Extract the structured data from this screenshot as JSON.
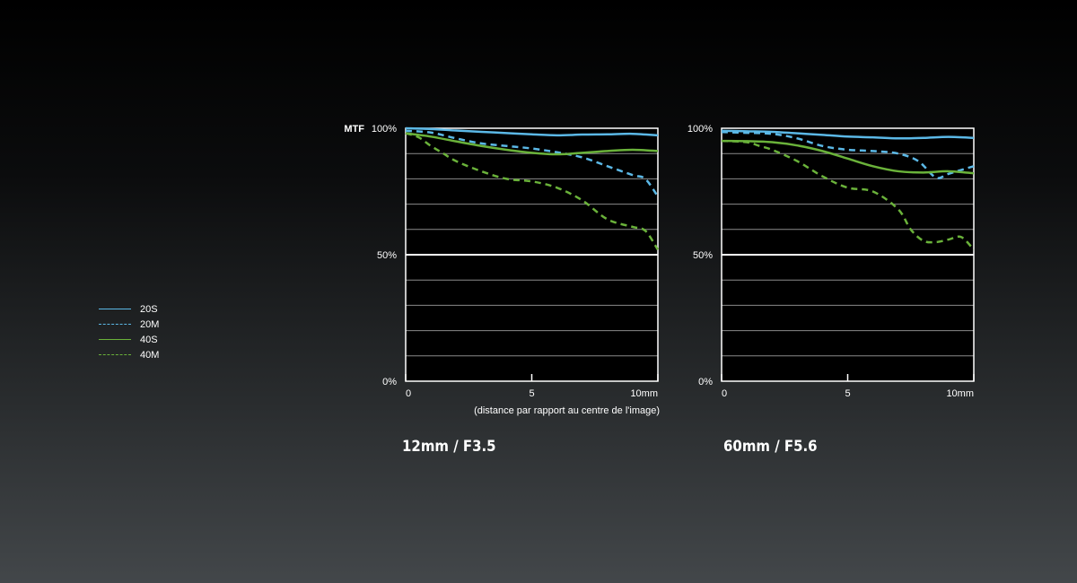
{
  "colors": {
    "background_top": "#000000",
    "background_bottom": "#43474a",
    "blue": "#5bb8e6",
    "green": "#6ab23a",
    "grid": "#8a8a8a",
    "major_grid": "#ffffff"
  },
  "legend": {
    "items": [
      {
        "label": "20S",
        "color": "#5bb8e6",
        "style": "solid"
      },
      {
        "label": "20M",
        "color": "#5bb8e6",
        "style": "dashed"
      },
      {
        "label": "40S",
        "color": "#6ab23a",
        "style": "solid"
      },
      {
        "label": "40M",
        "color": "#6ab23a",
        "style": "dashed"
      }
    ]
  },
  "chart_data": [
    {
      "type": "line",
      "ylabel": "MTF",
      "xlabel": "(distance par rapport au centre de l'image)",
      "caption": "12mm / F3.5",
      "xlim": [
        0,
        10
      ],
      "ylim": [
        0,
        100
      ],
      "x_ticks": [
        0,
        5,
        10
      ],
      "x_tick_labels": [
        "0",
        "5",
        "10mm"
      ],
      "y_tick_labels": [
        {
          "value": 100,
          "label": "100%"
        },
        {
          "value": 50,
          "label": "50%"
        },
        {
          "value": 0,
          "label": "0%"
        }
      ],
      "grid": true,
      "series": [
        {
          "name": "20S",
          "x": [
            0,
            1,
            2,
            3,
            4,
            5,
            6,
            7,
            8,
            9,
            10
          ],
          "values": [
            100,
            99.7,
            99.1,
            98.6,
            98.1,
            97.6,
            97.2,
            97.5,
            97.6,
            97.8,
            97.2
          ]
        },
        {
          "name": "20M",
          "x": [
            0,
            1,
            2,
            3,
            4,
            5,
            6,
            7,
            8,
            9,
            9.5,
            10
          ],
          "values": [
            99,
            98.3,
            96,
            94,
            93,
            92,
            90.5,
            88.5,
            85,
            81.5,
            80,
            73
          ]
        },
        {
          "name": "40S",
          "x": [
            0,
            1,
            2,
            3,
            4,
            5,
            6,
            7,
            8,
            9,
            10
          ],
          "values": [
            98,
            96.7,
            94.8,
            93,
            91.5,
            90.3,
            89.7,
            90.3,
            91,
            91.5,
            91
          ]
        },
        {
          "name": "40M",
          "x": [
            0,
            0.5,
            1,
            1.5,
            2,
            3,
            4,
            5,
            6,
            7,
            8,
            9,
            9.5,
            10
          ],
          "values": [
            98,
            96.5,
            93,
            90,
            87,
            83,
            80,
            79,
            76.5,
            71.5,
            64,
            61,
            59.5,
            52
          ]
        }
      ]
    },
    {
      "type": "line",
      "ylabel": "",
      "xlabel": "",
      "caption": "60mm / F5.6",
      "xlim": [
        0,
        10
      ],
      "ylim": [
        0,
        100
      ],
      "x_ticks": [
        0,
        5,
        10
      ],
      "x_tick_labels": [
        "0",
        "5",
        "10mm"
      ],
      "y_tick_labels": [
        {
          "value": 100,
          "label": "100%"
        },
        {
          "value": 50,
          "label": "50%"
        },
        {
          "value": 0,
          "label": "0%"
        }
      ],
      "grid": true,
      "series": [
        {
          "name": "20S",
          "x": [
            0,
            1,
            2,
            3,
            4,
            5,
            6,
            7,
            8,
            9,
            10
          ],
          "values": [
            99,
            98.8,
            98.6,
            98,
            97.4,
            96.7,
            96.4,
            96,
            96.2,
            96.6,
            96.2
          ]
        },
        {
          "name": "20M",
          "x": [
            0,
            1,
            2,
            3,
            4,
            5,
            6,
            7,
            7.8,
            8.5,
            9,
            10
          ],
          "values": [
            98.5,
            98.2,
            97.8,
            96,
            93,
            91.5,
            91,
            90,
            87,
            80.5,
            82,
            85
          ]
        },
        {
          "name": "40S",
          "x": [
            0,
            1,
            2,
            3,
            4,
            5,
            6,
            7,
            8,
            9,
            10
          ],
          "values": [
            95,
            94.9,
            94.5,
            93.2,
            91,
            88,
            85,
            83,
            82.5,
            83,
            82.2
          ]
        },
        {
          "name": "40M",
          "x": [
            0,
            1,
            1.5,
            2,
            3,
            4,
            5,
            6,
            7,
            7.5,
            8,
            8.5,
            9,
            9.5,
            10
          ],
          "values": [
            95,
            94.5,
            93,
            91.5,
            87,
            81,
            76.5,
            75,
            68,
            60,
            55.5,
            55,
            56,
            57,
            52
          ]
        }
      ]
    }
  ]
}
